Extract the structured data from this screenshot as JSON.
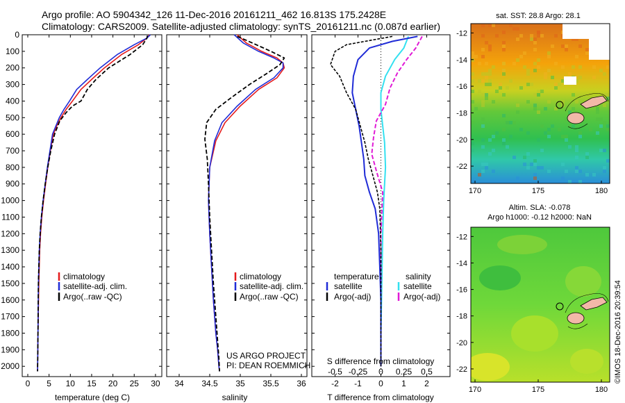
{
  "header": {
    "line1": "Argo profile: AO 5904342_126 11-Dec-2016 20161211_462 16.813S 175.2428E",
    "line2": "Climatology: CARS2009. Satellite-adjusted climatology: synTS_20161211.nc (0.087d earlier)"
  },
  "colors": {
    "climatology": "#e41a1c",
    "satellite": "#1f2bd6",
    "argo": "#000000",
    "sat_salinity": "#33e0f0",
    "argo_salinity_adj": "#e01ad6"
  },
  "depth_ticks": [
    "0",
    "100",
    "200",
    "300",
    "400",
    "500",
    "600",
    "700",
    "800",
    "900",
    "1000",
    "1100",
    "1200",
    "1300",
    "1400",
    "1500",
    "1600",
    "1700",
    "1800",
    "1900",
    "2000"
  ],
  "panel1": {
    "xlabel": "temperature (deg C)",
    "xticks": [
      "0",
      "5",
      "10",
      "15",
      "20",
      "25",
      "30"
    ],
    "legend": [
      "climatology",
      "satellite-adj. clim.",
      "Argo(..raw -QC)"
    ]
  },
  "panel2": {
    "xlabel": "salinity",
    "xticks": [
      "34",
      "34.5",
      "35",
      "35.5",
      "36"
    ],
    "legend": [
      "climatology",
      "satellite-adj. clim.",
      "Argo(..raw -QC)"
    ],
    "credit1": "US ARGO PROJECT",
    "credit2": "PI: DEAN ROEMMICH"
  },
  "panel3": {
    "xlabel": "T difference from climatology",
    "toplabel": "S difference from climatology",
    "xticks_T": [
      "-2",
      "-1",
      "0",
      "1",
      "2"
    ],
    "xticks_S": [
      "-0.5",
      "-0.25",
      "0",
      "0.25",
      "0.5"
    ],
    "legend_t_title": "temperature",
    "legend_s_title": "salinity",
    "legend_t": [
      "satellite",
      "Argo(-adj)"
    ],
    "legend_s": [
      "satellite",
      "Argo(-adj)"
    ]
  },
  "map1": {
    "title": "sat. SST: 28.8 Argo: 28.1",
    "yticks": [
      "-12",
      "-14",
      "-16",
      "-18",
      "-20",
      "-22"
    ],
    "xticks": [
      "170",
      "175",
      "180"
    ]
  },
  "map2": {
    "title1": "Altim. SLA: -0.078",
    "title2": "Argo h1000: -0.12 h2000: NaN",
    "yticks": [
      "-12",
      "-14",
      "-16",
      "-18",
      "-20",
      "-22"
    ],
    "xticks": [
      "170",
      "175",
      "180"
    ]
  },
  "stamp": "©IMOS 18-Dec-2016 20:39:54",
  "chart_data": [
    {
      "type": "line",
      "xlabel": "temperature (deg C)",
      "ylabel": "",
      "xlim": [
        -2,
        31
      ],
      "ylim": [
        2100,
        0
      ],
      "series": [
        {
          "name": "climatology",
          "x": [
            28.6,
            28,
            26,
            22,
            18,
            15,
            12.5,
            10.5,
            9,
            7.8,
            6.8,
            6,
            5.3,
            4.7,
            4.2,
            3.7,
            3.3,
            3.0,
            2.8,
            2.6,
            2.4,
            2.3
          ],
          "y": [
            0,
            20,
            60,
            120,
            200,
            270,
            330,
            400,
            450,
            500,
            550,
            600,
            700,
            800,
            900,
            1000,
            1100,
            1200,
            1300,
            1500,
            1800,
            2030
          ]
        },
        {
          "name": "satellite-adj. clim.",
          "x": [
            28.8,
            28,
            25,
            21,
            17,
            14,
            11.5,
            9.8,
            8.5,
            7.4,
            6.6,
            5.8,
            5.2,
            4.6,
            4.1,
            3.6,
            3.2,
            2.9,
            2.7,
            2.5,
            2.4,
            2.3
          ],
          "y": [
            0,
            20,
            60,
            120,
            200,
            270,
            330,
            400,
            450,
            500,
            550,
            600,
            700,
            800,
            900,
            1000,
            1100,
            1200,
            1300,
            1500,
            1800,
            2030
          ]
        },
        {
          "name": "Argo(..raw -QC)",
          "x": [
            28.1,
            28,
            27,
            24,
            19,
            16,
            14,
            12.5,
            10.5,
            9,
            7.5,
            6.3,
            5.4,
            4.7,
            4.1,
            3.6,
            3.2,
            2.9,
            2.7,
            2.5,
            2.4,
            2.3
          ],
          "y": [
            5,
            20,
            60,
            120,
            200,
            270,
            330,
            400,
            430,
            470,
            520,
            600,
            700,
            800,
            900,
            1000,
            1100,
            1200,
            1300,
            1500,
            1800,
            2030
          ]
        }
      ]
    },
    {
      "type": "line",
      "xlabel": "salinity",
      "ylabel": "",
      "xlim": [
        33.85,
        36.15
      ],
      "ylim": [
        2100,
        0
      ],
      "series": [
        {
          "name": "climatology",
          "x": [
            34.95,
            35.1,
            35.35,
            35.6,
            35.7,
            35.72,
            35.6,
            35.3,
            35.0,
            34.75,
            34.6,
            34.5,
            34.48,
            34.5,
            34.53,
            34.56,
            34.6,
            34.63,
            34.65,
            34.66
          ],
          "y": [
            0,
            50,
            100,
            140,
            170,
            200,
            260,
            330,
            430,
            530,
            640,
            800,
            1000,
            1200,
            1400,
            1600,
            1800,
            1900,
            2000,
            2030
          ]
        },
        {
          "name": "satellite-adj. clim.",
          "x": [
            34.9,
            35.05,
            35.3,
            35.55,
            35.7,
            35.7,
            35.55,
            35.25,
            34.95,
            34.7,
            34.58,
            34.5,
            34.48,
            34.5,
            34.53,
            34.56,
            34.6,
            34.63,
            34.65,
            34.66
          ],
          "y": [
            0,
            50,
            100,
            140,
            170,
            200,
            260,
            330,
            430,
            530,
            640,
            800,
            1000,
            1200,
            1400,
            1600,
            1800,
            1900,
            2000,
            2030
          ]
        },
        {
          "name": "Argo(..raw -QC)",
          "x": [
            34.95,
            35.2,
            35.5,
            35.72,
            35.65,
            35.45,
            35.15,
            34.85,
            34.6,
            34.45,
            34.42,
            34.46,
            34.48,
            34.5,
            34.53,
            34.56,
            34.6,
            34.63,
            34.65,
            34.66
          ],
          "y": [
            10,
            50,
            100,
            140,
            180,
            230,
            300,
            380,
            450,
            530,
            630,
            750,
            900,
            1100,
            1300,
            1500,
            1700,
            1850,
            1950,
            2030
          ]
        }
      ]
    },
    {
      "type": "line",
      "xlabel": "T difference from climatology",
      "ylabel": "",
      "xlim": [
        -2.8,
        2.8
      ],
      "ylim": [
        2100,
        0
      ],
      "series": [
        {
          "name": "temperature satellite",
          "x": [
            1.6,
            0.5,
            -0.5,
            -1.0,
            -1.2,
            -1.25,
            -1.1,
            -0.95,
            -0.85,
            -0.75,
            -0.7,
            -0.5,
            -0.25,
            -0.1,
            -0.05,
            0,
            0,
            0
          ],
          "y": [
            10,
            40,
            80,
            150,
            250,
            350,
            450,
            550,
            650,
            750,
            850,
            950,
            1050,
            1200,
            1400,
            1600,
            1800,
            2000
          ]
        },
        {
          "name": "temperature Argo(-adj)",
          "x": [
            0.5,
            -1.5,
            -2.0,
            -2.2,
            -1.8,
            -1.5,
            -1.1,
            -0.9,
            -0.7,
            -0.55,
            -0.35,
            -0.15,
            -0.05,
            0,
            0,
            0
          ],
          "y": [
            10,
            60,
            100,
            180,
            250,
            350,
            450,
            550,
            650,
            750,
            850,
            950,
            1050,
            1300,
            1600,
            2000
          ]
        },
        {
          "name": "salinity satellite",
          "x": [
            0.3,
            0.25,
            0.15,
            0.05,
            0.0,
            0.0,
            0.02,
            0.04,
            0.05,
            0.04,
            0.03,
            0.02,
            0.01,
            0,
            0
          ],
          "y": [
            10,
            80,
            150,
            250,
            350,
            450,
            550,
            650,
            800,
            900,
            1000,
            1200,
            1500,
            1800,
            2000
          ]
        },
        {
          "name": "salinity Argo(-adj)",
          "x": [
            0.45,
            0.38,
            0.28,
            0.18,
            0.1,
            0.05,
            -0.05,
            -0.08,
            -0.1,
            -0.05,
            0.02,
            0,
            0
          ],
          "y": [
            10,
            80,
            150,
            230,
            320,
            420,
            520,
            620,
            720,
            820,
            950,
            1200,
            2000
          ]
        }
      ]
    }
  ]
}
